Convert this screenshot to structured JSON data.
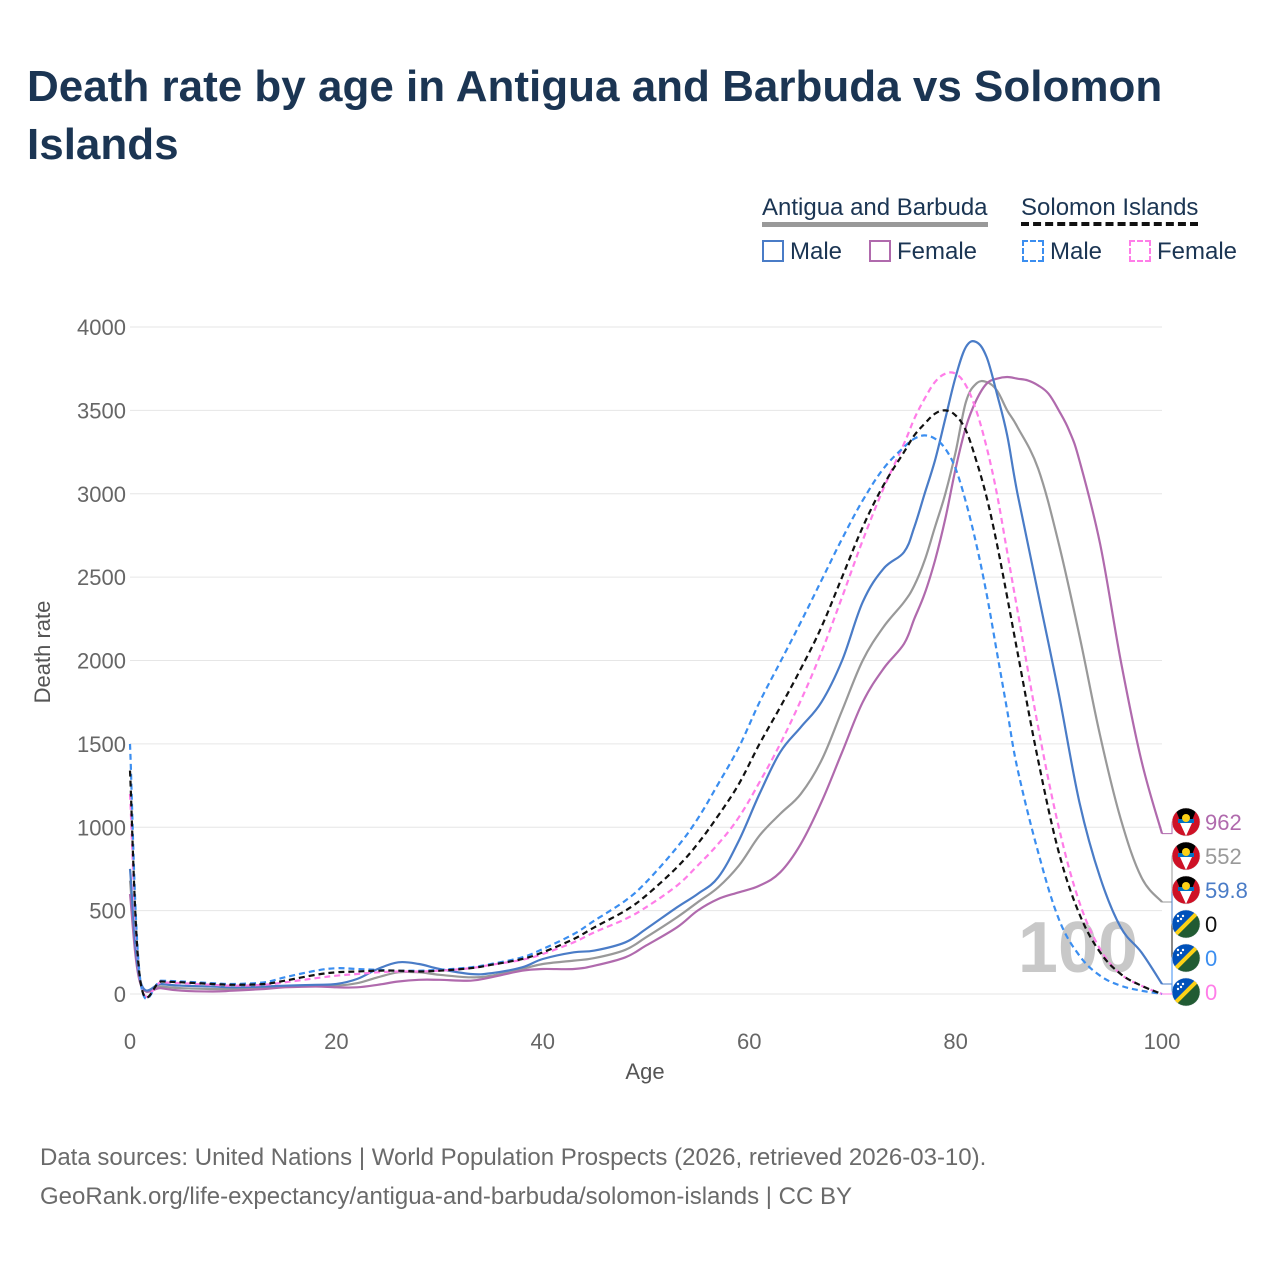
{
  "title": "Death rate by age in Antigua and Barbuda vs Solomon Islands",
  "legend": {
    "group_a": "Antigua and Barbuda",
    "group_b": "Solomon Islands",
    "a_male": "Male",
    "a_female": "Female",
    "b_male": "Male",
    "b_female": "Female"
  },
  "colors": {
    "male": "#4a7cc7",
    "female": "#b06aad",
    "sol_male": "#3b8ef0",
    "sol_female": "#ff7de8",
    "ant_total": "#999999",
    "sol_total": "#111111",
    "title": "#1b3553"
  },
  "watermark_age": "100",
  "sources": {
    "line1": "Data sources: United Nations | World Population Prospects (2026, retrieved 2026-03-10).",
    "line2": "GeoRank.org/life-expectancy/antigua-and-barbuda/solomon-islands | CC BY"
  },
  "end_labels": [
    {
      "text": "962",
      "series": "ant_female",
      "flag": "antigua-flag-icon",
      "color": "#b06aad"
    },
    {
      "text": "552",
      "series": "ant_total",
      "flag": "antigua-flag-icon",
      "color": "#999999"
    },
    {
      "text": "59.8",
      "series": "ant_male",
      "flag": "antigua-flag-icon",
      "color": "#4a7cc7"
    },
    {
      "text": "0",
      "series": "sol_total",
      "flag": "solomon-flag-icon",
      "color": "#111111"
    },
    {
      "text": "0",
      "series": "sol_male",
      "flag": "solomon-flag-icon",
      "color": "#3b8ef0"
    },
    {
      "text": "0",
      "series": "sol_female",
      "flag": "solomon-flag-icon",
      "color": "#ff7de8"
    }
  ],
  "chart_data": {
    "type": "line",
    "title": "Death rate by age in Antigua and Barbuda vs Solomon Islands",
    "xlabel": "Age",
    "ylabel": "Death rate",
    "xlim": [
      0,
      100
    ],
    "ylim": [
      0,
      4000
    ],
    "xticks": [
      "0",
      "20",
      "40",
      "60",
      "80",
      "100"
    ],
    "yticks": [
      "0",
      "500",
      "1000",
      "1500",
      "2000",
      "2500",
      "3000",
      "3500",
      "4000"
    ],
    "grid": true,
    "series": [
      {
        "name": "Antigua and Barbuda Male",
        "key": "ant_male",
        "dashed": false,
        "x": [
          0,
          1,
          3,
          5,
          8,
          10,
          13,
          15,
          18,
          20,
          22,
          24,
          26,
          28,
          30,
          33,
          35,
          38,
          40,
          43,
          45,
          48,
          50,
          53,
          55,
          57,
          59,
          61,
          63,
          65,
          67,
          69,
          71,
          73,
          75,
          76,
          77,
          78,
          79,
          80,
          81,
          82,
          83,
          84,
          85,
          86,
          88,
          90,
          92,
          94,
          96,
          98,
          100
        ],
        "y": [
          750,
          80,
          60,
          50,
          45,
          40,
          45,
          50,
          55,
          60,
          90,
          150,
          190,
          180,
          150,
          120,
          125,
          160,
          210,
          250,
          260,
          310,
          390,
          520,
          600,
          700,
          920,
          1200,
          1450,
          1600,
          1750,
          2000,
          2350,
          2550,
          2650,
          2800,
          3000,
          3200,
          3450,
          3700,
          3880,
          3910,
          3820,
          3600,
          3350,
          3000,
          2400,
          1800,
          1150,
          700,
          400,
          250,
          59.8
        ]
      },
      {
        "name": "Antigua and Barbuda Female",
        "key": "ant_female",
        "dashed": false,
        "x": [
          0,
          1,
          3,
          5,
          8,
          10,
          13,
          15,
          18,
          20,
          22,
          24,
          26,
          28,
          30,
          33,
          35,
          38,
          40,
          43,
          45,
          48,
          50,
          53,
          55,
          57,
          59,
          61,
          63,
          65,
          67,
          69,
          71,
          73,
          75,
          76,
          77,
          78,
          79,
          80,
          81,
          82,
          83,
          84,
          85,
          86,
          87,
          88,
          89,
          90,
          91,
          92,
          94,
          96,
          98,
          100
        ],
        "y": [
          600,
          65,
          35,
          20,
          15,
          20,
          30,
          40,
          45,
          40,
          40,
          55,
          75,
          85,
          85,
          80,
          100,
          140,
          150,
          150,
          170,
          220,
          290,
          400,
          500,
          570,
          610,
          650,
          730,
          900,
          1150,
          1450,
          1750,
          1950,
          2100,
          2250,
          2400,
          2600,
          2850,
          3150,
          3400,
          3560,
          3660,
          3690,
          3700,
          3690,
          3680,
          3650,
          3600,
          3500,
          3380,
          3200,
          2700,
          2000,
          1400,
          962
        ]
      },
      {
        "name": "Antigua and Barbuda",
        "key": "ant_total",
        "dashed": false,
        "x": [
          0,
          1,
          3,
          5,
          8,
          10,
          13,
          15,
          18,
          20,
          22,
          24,
          26,
          28,
          30,
          33,
          35,
          38,
          40,
          43,
          45,
          48,
          50,
          53,
          55,
          57,
          59,
          61,
          63,
          65,
          67,
          69,
          71,
          73,
          75,
          76,
          77,
          78,
          79,
          80,
          81,
          82,
          83,
          84,
          85,
          86,
          88,
          90,
          92,
          94,
          96,
          98,
          100
        ],
        "y": [
          680,
          70,
          45,
          35,
          30,
          30,
          40,
          45,
          50,
          50,
          65,
          100,
          130,
          130,
          115,
          100,
          110,
          150,
          180,
          200,
          215,
          265,
          340,
          460,
          550,
          640,
          770,
          950,
          1080,
          1200,
          1400,
          1700,
          2000,
          2200,
          2350,
          2450,
          2600,
          2800,
          3000,
          3250,
          3550,
          3660,
          3670,
          3620,
          3500,
          3400,
          3150,
          2700,
          2150,
          1550,
          1050,
          700,
          552
        ]
      },
      {
        "name": "Solomon Islands",
        "key": "sol_total",
        "dashed": true,
        "x": [
          0,
          1,
          3,
          5,
          8,
          10,
          13,
          15,
          18,
          20,
          22,
          24,
          26,
          28,
          30,
          33,
          35,
          38,
          40,
          43,
          45,
          48,
          50,
          53,
          55,
          57,
          59,
          61,
          63,
          65,
          67,
          69,
          71,
          73,
          75,
          76,
          77,
          78,
          79,
          80,
          81,
          82,
          83,
          84,
          85,
          86,
          88,
          90,
          92,
          94,
          96,
          98,
          100
        ],
        "y": [
          1340,
          80,
          75,
          70,
          60,
          55,
          60,
          80,
          115,
          130,
          135,
          140,
          140,
          135,
          140,
          155,
          175,
          210,
          250,
          330,
          400,
          500,
          590,
          760,
          900,
          1070,
          1260,
          1500,
          1720,
          1950,
          2200,
          2500,
          2800,
          3050,
          3250,
          3350,
          3420,
          3480,
          3500,
          3470,
          3380,
          3200,
          2980,
          2700,
          2380,
          2050,
          1400,
          850,
          480,
          250,
          120,
          50,
          0
        ]
      },
      {
        "name": "Solomon Islands Male",
        "key": "sol_male",
        "dashed": true,
        "x": [
          0,
          1,
          3,
          5,
          8,
          10,
          13,
          15,
          18,
          20,
          22,
          24,
          26,
          28,
          30,
          33,
          35,
          38,
          40,
          43,
          45,
          48,
          50,
          53,
          55,
          57,
          59,
          61,
          63,
          65,
          67,
          69,
          71,
          73,
          75,
          76,
          77,
          78,
          79,
          80,
          81,
          82,
          83,
          84,
          85,
          86,
          88,
          90,
          92,
          94,
          96,
          98,
          100
        ],
        "y": [
          1500,
          85,
          80,
          75,
          65,
          60,
          70,
          100,
          140,
          155,
          150,
          145,
          140,
          140,
          145,
          160,
          180,
          220,
          270,
          360,
          440,
          560,
          670,
          880,
          1050,
          1260,
          1480,
          1750,
          1990,
          2230,
          2480,
          2730,
          2960,
          3150,
          3280,
          3330,
          3350,
          3330,
          3270,
          3150,
          2950,
          2700,
          2400,
          2050,
          1700,
          1350,
          850,
          450,
          230,
          110,
          50,
          20,
          0
        ]
      },
      {
        "name": "Solomon Islands Female",
        "key": "sol_female",
        "dashed": true,
        "x": [
          0,
          1,
          3,
          5,
          8,
          10,
          13,
          15,
          18,
          20,
          22,
          24,
          26,
          28,
          30,
          33,
          35,
          38,
          40,
          43,
          45,
          48,
          50,
          53,
          55,
          57,
          59,
          61,
          63,
          65,
          67,
          69,
          71,
          73,
          75,
          76,
          77,
          78,
          79,
          80,
          81,
          82,
          83,
          84,
          85,
          86,
          88,
          90,
          92,
          94,
          96,
          98,
          100
        ],
        "y": [
          1200,
          75,
          70,
          65,
          55,
          50,
          55,
          70,
          95,
          110,
          120,
          130,
          135,
          135,
          140,
          155,
          175,
          205,
          240,
          310,
          370,
          450,
          520,
          650,
          770,
          900,
          1060,
          1270,
          1500,
          1760,
          2050,
          2380,
          2720,
          3030,
          3300,
          3450,
          3570,
          3670,
          3720,
          3720,
          3650,
          3500,
          3280,
          3000,
          2650,
          2300,
          1600,
          1000,
          550,
          270,
          120,
          50,
          0
        ]
      }
    ]
  }
}
